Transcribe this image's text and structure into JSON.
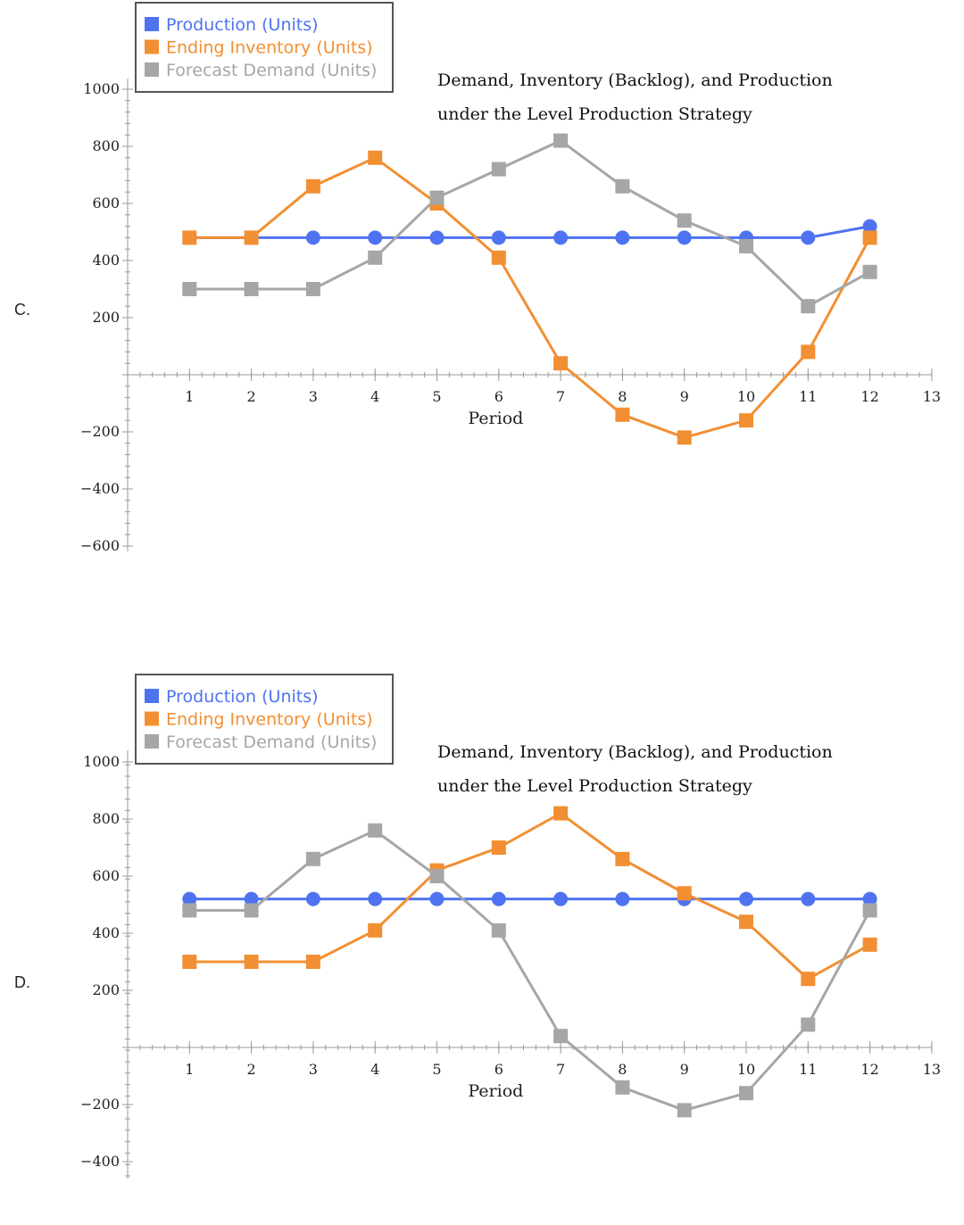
{
  "options": [
    {
      "label": "C.",
      "chart_data": {
        "type": "line",
        "title_lines": [
          "Demand, Inventory (Backlog), and Production",
          "under the Level Production Strategy"
        ],
        "xlabel": "Period",
        "ylabel": "",
        "xlim": [
          0,
          13
        ],
        "ylim": [
          -600,
          1000
        ],
        "x_ticks": [
          1,
          2,
          3,
          4,
          5,
          6,
          7,
          8,
          9,
          10,
          11,
          12,
          13
        ],
        "y_ticks": [
          -600,
          -400,
          -200,
          200,
          400,
          600,
          800,
          1000
        ],
        "y_tick_labels": [
          "−600",
          "−400",
          "−200",
          "200",
          "400",
          "600",
          "800",
          "1000"
        ],
        "legend_position": "top-left",
        "series": [
          {
            "name": "Production (Units)",
            "color": "#4f73f0",
            "marker": "circle",
            "x": [
              1,
              2,
              3,
              4,
              5,
              6,
              7,
              8,
              9,
              10,
              11,
              12
            ],
            "values": [
              480,
              480,
              480,
              480,
              480,
              480,
              480,
              480,
              480,
              480,
              480,
              520
            ]
          },
          {
            "name": "Ending Inventory (Units)",
            "color": "#f28f32",
            "marker": "square",
            "x": [
              1,
              2,
              3,
              4,
              5,
              6,
              7,
              8,
              9,
              10,
              11,
              12
            ],
            "values": [
              480,
              480,
              660,
              760,
              600,
              410,
              40,
              -140,
              -220,
              -160,
              80,
              480
            ]
          },
          {
            "name": "Forecast Demand (Units)",
            "color": "#a6a6a6",
            "marker": "square",
            "x": [
              1,
              2,
              3,
              4,
              5,
              6,
              7,
              8,
              9,
              10,
              11,
              12
            ],
            "values": [
              300,
              300,
              300,
              410,
              620,
              720,
              820,
              660,
              540,
              450,
              240,
              360
            ]
          }
        ]
      }
    },
    {
      "label": "D.",
      "chart_data": {
        "type": "line",
        "title_lines": [
          "Demand, Inventory (Backlog), and Production",
          "under the Level Production Strategy"
        ],
        "xlabel": "Period",
        "ylabel": "",
        "xlim": [
          0,
          13
        ],
        "ylim": [
          -450,
          1000
        ],
        "x_ticks": [
          1,
          2,
          3,
          4,
          5,
          6,
          7,
          8,
          9,
          10,
          11,
          12,
          13
        ],
        "y_ticks": [
          -400,
          -200,
          200,
          400,
          600,
          800,
          1000
        ],
        "y_tick_labels": [
          "−400",
          "−200",
          "200",
          "400",
          "600",
          "800",
          "1000"
        ],
        "legend_position": "top-left",
        "series": [
          {
            "name": "Production (Units)",
            "color": "#4f73f0",
            "marker": "circle",
            "x": [
              1,
              2,
              3,
              4,
              5,
              6,
              7,
              8,
              9,
              10,
              11,
              12
            ],
            "values": [
              520,
              520,
              520,
              520,
              520,
              520,
              520,
              520,
              520,
              520,
              520,
              520
            ]
          },
          {
            "name": "Ending Inventory (Units)",
            "color": "#f28f32",
            "marker": "square",
            "x": [
              1,
              2,
              3,
              4,
              5,
              6,
              7,
              8,
              9,
              10,
              11,
              12
            ],
            "values": [
              300,
              300,
              300,
              410,
              620,
              700,
              820,
              660,
              540,
              440,
              240,
              360
            ]
          },
          {
            "name": "Forecast Demand (Units)",
            "color": "#a6a6a6",
            "marker": "square",
            "x": [
              1,
              2,
              3,
              4,
              5,
              6,
              7,
              8,
              9,
              10,
              11,
              12
            ],
            "values": [
              480,
              480,
              660,
              760,
              600,
              410,
              40,
              -140,
              -220,
              -160,
              80,
              480
            ]
          }
        ]
      }
    }
  ]
}
